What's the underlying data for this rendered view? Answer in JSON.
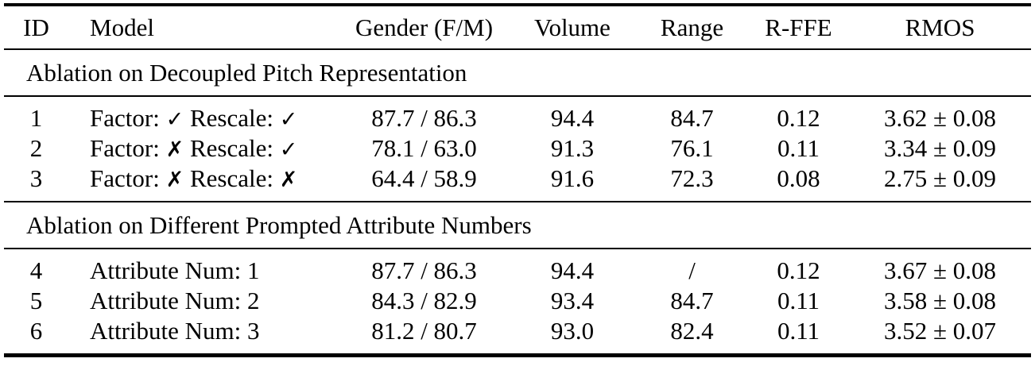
{
  "table": {
    "columns": [
      {
        "label": "ID"
      },
      {
        "label": "Model"
      },
      {
        "label": "Gender (F/M)"
      },
      {
        "label": "Volume"
      },
      {
        "label": "Range"
      },
      {
        "label": "R-FFE"
      },
      {
        "label": "RMOS"
      }
    ],
    "sections": [
      {
        "title": "Ablation on Decoupled Pitch Representation",
        "rows": [
          {
            "id": "1",
            "model_prefix": "Factor:",
            "factor_mark": "✓",
            "model_mid": "Rescale:",
            "rescale_mark": "✓",
            "gender": "87.7 / 86.3",
            "volume": "94.4",
            "range": "84.7",
            "rffe": "0.12",
            "rmos": "3.62 ± 0.08"
          },
          {
            "id": "2",
            "model_prefix": "Factor:",
            "factor_mark": "✗",
            "model_mid": "Rescale:",
            "rescale_mark": "✓",
            "gender": "78.1 / 63.0",
            "volume": "91.3",
            "range": "76.1",
            "rffe": "0.11",
            "rmos": "3.34 ± 0.09"
          },
          {
            "id": "3",
            "model_prefix": "Factor:",
            "factor_mark": "✗",
            "model_mid": "Rescale:",
            "rescale_mark": "✗",
            "gender": "64.4 / 58.9",
            "volume": "91.6",
            "range": "72.3",
            "rffe": "0.08",
            "rmos": "2.75 ± 0.09"
          }
        ]
      },
      {
        "title": "Ablation on Different Prompted Attribute Numbers",
        "rows": [
          {
            "id": "4",
            "model": "Attribute Num: 1",
            "gender": "87.7 / 86.3",
            "volume": "94.4",
            "range": "/",
            "rffe": "0.12",
            "rmos": "3.67 ± 0.08"
          },
          {
            "id": "5",
            "model": "Attribute Num: 2",
            "gender": "84.3 / 82.9",
            "volume": "93.4",
            "range": "84.7",
            "rffe": "0.11",
            "rmos": "3.58 ± 0.08"
          },
          {
            "id": "6",
            "model": "Attribute Num: 3",
            "gender": "81.2 / 80.7",
            "volume": "93.0",
            "range": "82.4",
            "rffe": "0.11",
            "rmos": "3.52 ± 0.07"
          }
        ]
      }
    ]
  }
}
